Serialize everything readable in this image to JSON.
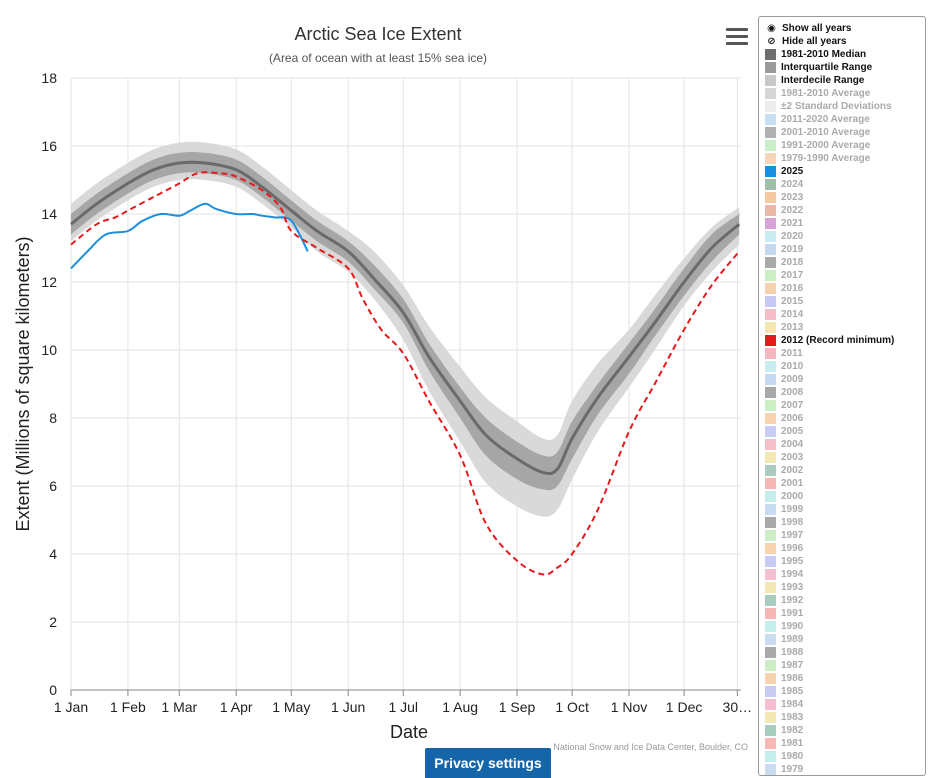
{
  "chart_data": {
    "type": "line",
    "title": "Arctic Sea Ice Extent",
    "subtitle": "(Area of ocean with at least 15% sea ice)",
    "xlabel": "Date",
    "ylabel": "Extent (Millions of square kilometers)",
    "ylim": [
      0,
      18
    ],
    "yticks": [
      0,
      2,
      4,
      6,
      8,
      10,
      12,
      14,
      16,
      18
    ],
    "xlim": [
      1,
      366
    ],
    "x_ticks": [
      {
        "day": 1,
        "label": "1 Jan"
      },
      {
        "day": 32,
        "label": "1 Feb"
      },
      {
        "day": 60,
        "label": "1 Mar"
      },
      {
        "day": 91,
        "label": "1 Apr"
      },
      {
        "day": 121,
        "label": "1 May"
      },
      {
        "day": 152,
        "label": "1 Jun"
      },
      {
        "day": 182,
        "label": "1 Jul"
      },
      {
        "day": 213,
        "label": "1 Aug"
      },
      {
        "day": 244,
        "label": "1 Sep"
      },
      {
        "day": 274,
        "label": "1 Oct"
      },
      {
        "day": 305,
        "label": "1 Nov"
      },
      {
        "day": 335,
        "label": "1 Dec"
      },
      {
        "day": 364,
        "label": "30…"
      }
    ],
    "grid": true,
    "legend_position": "right",
    "x": [
      1,
      15,
      32,
      46,
      60,
      74,
      91,
      105,
      121,
      135,
      152,
      166,
      182,
      196,
      213,
      227,
      244,
      258,
      266,
      274,
      288,
      305,
      319,
      335,
      350,
      365
    ],
    "median": [
      13.7,
      14.3,
      14.9,
      15.3,
      15.5,
      15.5,
      15.3,
      14.8,
      14.1,
      13.5,
      12.9,
      12.1,
      11.1,
      9.8,
      8.5,
      7.5,
      6.8,
      6.4,
      6.5,
      7.4,
      8.6,
      9.8,
      10.8,
      12.0,
      13.0,
      13.7
    ],
    "interquartile": {
      "low": [
        13.4,
        14.0,
        14.6,
        15.0,
        15.2,
        15.2,
        15.0,
        14.5,
        13.8,
        13.2,
        12.6,
        11.8,
        10.8,
        9.4,
        8.0,
        6.9,
        6.2,
        5.9,
        6.0,
        6.8,
        8.1,
        9.3,
        10.4,
        11.6,
        12.6,
        13.4
      ],
      "high": [
        14.0,
        14.6,
        15.2,
        15.6,
        15.8,
        15.8,
        15.6,
        15.1,
        14.4,
        13.8,
        13.2,
        12.5,
        11.5,
        10.2,
        8.9,
        8.0,
        7.3,
        6.9,
        7.0,
        7.9,
        9.0,
        10.2,
        11.2,
        12.4,
        13.4,
        14.0
      ]
    },
    "interdecile": {
      "low": [
        13.2,
        13.8,
        14.4,
        14.8,
        15.0,
        15.0,
        14.8,
        14.3,
        13.6,
        12.9,
        12.3,
        11.5,
        10.3,
        8.8,
        7.3,
        6.1,
        5.4,
        5.1,
        5.3,
        6.2,
        7.6,
        8.9,
        10.0,
        11.3,
        12.3,
        13.1
      ],
      "high": [
        14.3,
        14.9,
        15.5,
        15.9,
        16.1,
        16.1,
        15.9,
        15.4,
        14.7,
        14.1,
        13.5,
        12.9,
        11.9,
        10.7,
        9.5,
        8.6,
        7.9,
        7.4,
        7.5,
        8.5,
        9.6,
        10.6,
        11.6,
        12.7,
        13.6,
        14.2
      ]
    },
    "series": [
      {
        "name": "2025",
        "color": "#1a8fdd",
        "x": [
          1,
          10,
          20,
          32,
          40,
          50,
          60,
          66,
          74,
          80,
          91,
          100,
          105,
          112,
          121,
          130
        ],
        "values": [
          12.4,
          12.9,
          13.4,
          13.5,
          13.8,
          14.0,
          13.95,
          14.1,
          14.3,
          14.15,
          14.0,
          14.0,
          13.95,
          13.9,
          13.8,
          12.9
        ]
      },
      {
        "name": "2012 (Record minimum)",
        "color": "#e41a1c",
        "dash": true,
        "x": [
          1,
          15,
          25,
          32,
          46,
          60,
          70,
          82,
          91,
          105,
          115,
          121,
          135,
          152,
          160,
          170,
          182,
          196,
          213,
          227,
          244,
          258,
          266,
          274,
          288,
          305,
          319,
          335,
          350,
          365
        ],
        "values": [
          13.1,
          13.7,
          13.9,
          14.1,
          14.5,
          14.9,
          15.2,
          15.2,
          15.1,
          14.7,
          14.2,
          13.5,
          13.0,
          12.4,
          11.5,
          10.6,
          9.9,
          8.5,
          6.9,
          4.9,
          3.8,
          3.4,
          3.6,
          4.0,
          5.3,
          7.6,
          9.0,
          10.6,
          11.9,
          12.9
        ]
      }
    ]
  },
  "legend": {
    "show_all_label": "Show all years",
    "hide_all_label": "Hide all years",
    "items": [
      {
        "label": "1981-2010 Median",
        "color": "#6e6e6e",
        "active": true
      },
      {
        "label": "Interquartile Range",
        "color": "#9a9a9a",
        "active": true
      },
      {
        "label": "Interdecile Range",
        "color": "#c8c8c8",
        "active": true
      },
      {
        "label": "1981-2010 Average",
        "color": "#d6d6d6",
        "active": false
      },
      {
        "label": "±2 Standard Deviations",
        "color": "#ececec",
        "active": false
      },
      {
        "label": "2011-2020 Average",
        "color": "#c9dff2",
        "active": false
      },
      {
        "label": "2001-2010 Average",
        "color": "#b0b0b0",
        "active": false
      },
      {
        "label": "1991-2000 Average",
        "color": "#c8efc8",
        "active": false
      },
      {
        "label": "1979-1990 Average",
        "color": "#f7d5b8",
        "active": false
      },
      {
        "label": "2025",
        "color": "#1a8fdd",
        "active": true
      },
      {
        "label": "2024",
        "color": "#9fbfaa",
        "active": false
      },
      {
        "label": "2023",
        "color": "#f5c8a0",
        "active": false
      },
      {
        "label": "2022",
        "color": "#e7b9a6",
        "active": false
      },
      {
        "label": "2021",
        "color": "#d8a3d6",
        "active": false
      },
      {
        "label": "2020",
        "color": "#c8ecef",
        "active": false
      },
      {
        "label": "2019",
        "color": "#c5d9ee",
        "active": false
      },
      {
        "label": "2018",
        "color": "#a9a9a9",
        "active": false
      },
      {
        "label": "2017",
        "color": "#cbeec2",
        "active": false
      },
      {
        "label": "2016",
        "color": "#f7d0ad",
        "active": false
      },
      {
        "label": "2015",
        "color": "#c7c9f2",
        "active": false
      },
      {
        "label": "2014",
        "color": "#f5bdc8",
        "active": false
      },
      {
        "label": "2013",
        "color": "#f2e7b0",
        "active": false
      },
      {
        "label": "2012 (Record minimum)",
        "color": "#e41a1c",
        "active": true
      },
      {
        "label": "2011",
        "color": "#f5b8c0",
        "active": false
      },
      {
        "label": "2010",
        "color": "#c6eef0",
        "active": false
      },
      {
        "label": "2009",
        "color": "#c5daf0",
        "active": false
      },
      {
        "label": "2008",
        "color": "#a9a9a9",
        "active": false
      },
      {
        "label": "2007",
        "color": "#cbeec5",
        "active": false
      },
      {
        "label": "2006",
        "color": "#f7d3b0",
        "active": false
      },
      {
        "label": "2005",
        "color": "#c9cbf2",
        "active": false
      },
      {
        "label": "2004",
        "color": "#f5bfc9",
        "active": false
      },
      {
        "label": "2003",
        "color": "#f2e8b3",
        "active": false
      },
      {
        "label": "2002",
        "color": "#a8cdbe",
        "active": false
      },
      {
        "label": "2001",
        "color": "#f6b7b5",
        "active": false
      },
      {
        "label": "2000",
        "color": "#c4eeea",
        "active": false
      },
      {
        "label": "1999",
        "color": "#c9dcf2",
        "active": false
      },
      {
        "label": "1998",
        "color": "#a9a9a9",
        "active": false
      },
      {
        "label": "1997",
        "color": "#cbeec5",
        "active": false
      },
      {
        "label": "1996",
        "color": "#f7d3b0",
        "active": false
      },
      {
        "label": "1995",
        "color": "#c9cbf2",
        "active": false
      },
      {
        "label": "1994",
        "color": "#f5bfd0",
        "active": false
      },
      {
        "label": "1993",
        "color": "#f2e8b3",
        "active": false
      },
      {
        "label": "1992",
        "color": "#a8cdbe",
        "active": false
      },
      {
        "label": "1991",
        "color": "#f6b7b5",
        "active": false
      },
      {
        "label": "1990",
        "color": "#c4eeea",
        "active": false
      },
      {
        "label": "1989",
        "color": "#c9dcf2",
        "active": false
      },
      {
        "label": "1988",
        "color": "#a9a9a9",
        "active": false
      },
      {
        "label": "1987",
        "color": "#cbeec5",
        "active": false
      },
      {
        "label": "1986",
        "color": "#f7d3b0",
        "active": false
      },
      {
        "label": "1985",
        "color": "#c9cbf2",
        "active": false
      },
      {
        "label": "1984",
        "color": "#f5bfd0",
        "active": false
      },
      {
        "label": "1983",
        "color": "#f2e8b3",
        "active": false
      },
      {
        "label": "1982",
        "color": "#a8cdbe",
        "active": false
      },
      {
        "label": "1981",
        "color": "#f6b7b5",
        "active": false
      },
      {
        "label": "1980",
        "color": "#c4eeea",
        "active": false
      },
      {
        "label": "1979",
        "color": "#c9dcf2",
        "active": false
      }
    ]
  },
  "credit": "National Snow and Ice Data Center, Boulder, CO",
  "privacy_button": "Privacy settings"
}
